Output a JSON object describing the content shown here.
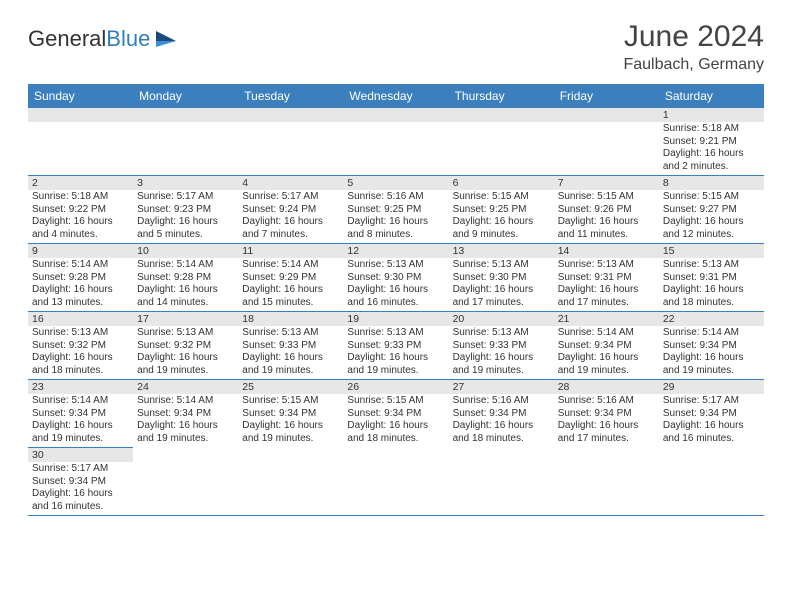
{
  "colors": {
    "header_bg": "#3b7fbf",
    "header_text": "#ffffff",
    "border": "#3b7fbf",
    "daynum_bg": "#e7e7e7",
    "body_text": "#333333",
    "logo_dark": "#333333",
    "logo_blue": "#2f7fbf",
    "page_bg": "#ffffff"
  },
  "typography": {
    "title_fontsize": 30,
    "location_fontsize": 16,
    "header_fontsize": 12,
    "cell_fontsize": 10,
    "font_family": "Arial"
  },
  "header": {
    "logo_general": "General",
    "logo_blue": "Blue",
    "month_title": "June 2024",
    "location": "Faulbach, Germany"
  },
  "calendar": {
    "type": "table",
    "columns": [
      "Sunday",
      "Monday",
      "Tuesday",
      "Wednesday",
      "Thursday",
      "Friday",
      "Saturday"
    ],
    "rows": [
      [
        null,
        null,
        null,
        null,
        null,
        null,
        {
          "day": "1",
          "sunrise": "Sunrise: 5:18 AM",
          "sunset": "Sunset: 9:21 PM",
          "daylight": "Daylight: 16 hours and 2 minutes."
        }
      ],
      [
        {
          "day": "2",
          "sunrise": "Sunrise: 5:18 AM",
          "sunset": "Sunset: 9:22 PM",
          "daylight": "Daylight: 16 hours and 4 minutes."
        },
        {
          "day": "3",
          "sunrise": "Sunrise: 5:17 AM",
          "sunset": "Sunset: 9:23 PM",
          "daylight": "Daylight: 16 hours and 5 minutes."
        },
        {
          "day": "4",
          "sunrise": "Sunrise: 5:17 AM",
          "sunset": "Sunset: 9:24 PM",
          "daylight": "Daylight: 16 hours and 7 minutes."
        },
        {
          "day": "5",
          "sunrise": "Sunrise: 5:16 AM",
          "sunset": "Sunset: 9:25 PM",
          "daylight": "Daylight: 16 hours and 8 minutes."
        },
        {
          "day": "6",
          "sunrise": "Sunrise: 5:15 AM",
          "sunset": "Sunset: 9:25 PM",
          "daylight": "Daylight: 16 hours and 9 minutes."
        },
        {
          "day": "7",
          "sunrise": "Sunrise: 5:15 AM",
          "sunset": "Sunset: 9:26 PM",
          "daylight": "Daylight: 16 hours and 11 minutes."
        },
        {
          "day": "8",
          "sunrise": "Sunrise: 5:15 AM",
          "sunset": "Sunset: 9:27 PM",
          "daylight": "Daylight: 16 hours and 12 minutes."
        }
      ],
      [
        {
          "day": "9",
          "sunrise": "Sunrise: 5:14 AM",
          "sunset": "Sunset: 9:28 PM",
          "daylight": "Daylight: 16 hours and 13 minutes."
        },
        {
          "day": "10",
          "sunrise": "Sunrise: 5:14 AM",
          "sunset": "Sunset: 9:28 PM",
          "daylight": "Daylight: 16 hours and 14 minutes."
        },
        {
          "day": "11",
          "sunrise": "Sunrise: 5:14 AM",
          "sunset": "Sunset: 9:29 PM",
          "daylight": "Daylight: 16 hours and 15 minutes."
        },
        {
          "day": "12",
          "sunrise": "Sunrise: 5:13 AM",
          "sunset": "Sunset: 9:30 PM",
          "daylight": "Daylight: 16 hours and 16 minutes."
        },
        {
          "day": "13",
          "sunrise": "Sunrise: 5:13 AM",
          "sunset": "Sunset: 9:30 PM",
          "daylight": "Daylight: 16 hours and 17 minutes."
        },
        {
          "day": "14",
          "sunrise": "Sunrise: 5:13 AM",
          "sunset": "Sunset: 9:31 PM",
          "daylight": "Daylight: 16 hours and 17 minutes."
        },
        {
          "day": "15",
          "sunrise": "Sunrise: 5:13 AM",
          "sunset": "Sunset: 9:31 PM",
          "daylight": "Daylight: 16 hours and 18 minutes."
        }
      ],
      [
        {
          "day": "16",
          "sunrise": "Sunrise: 5:13 AM",
          "sunset": "Sunset: 9:32 PM",
          "daylight": "Daylight: 16 hours and 18 minutes."
        },
        {
          "day": "17",
          "sunrise": "Sunrise: 5:13 AM",
          "sunset": "Sunset: 9:32 PM",
          "daylight": "Daylight: 16 hours and 19 minutes."
        },
        {
          "day": "18",
          "sunrise": "Sunrise: 5:13 AM",
          "sunset": "Sunset: 9:33 PM",
          "daylight": "Daylight: 16 hours and 19 minutes."
        },
        {
          "day": "19",
          "sunrise": "Sunrise: 5:13 AM",
          "sunset": "Sunset: 9:33 PM",
          "daylight": "Daylight: 16 hours and 19 minutes."
        },
        {
          "day": "20",
          "sunrise": "Sunrise: 5:13 AM",
          "sunset": "Sunset: 9:33 PM",
          "daylight": "Daylight: 16 hours and 19 minutes."
        },
        {
          "day": "21",
          "sunrise": "Sunrise: 5:14 AM",
          "sunset": "Sunset: 9:34 PM",
          "daylight": "Daylight: 16 hours and 19 minutes."
        },
        {
          "day": "22",
          "sunrise": "Sunrise: 5:14 AM",
          "sunset": "Sunset: 9:34 PM",
          "daylight": "Daylight: 16 hours and 19 minutes."
        }
      ],
      [
        {
          "day": "23",
          "sunrise": "Sunrise: 5:14 AM",
          "sunset": "Sunset: 9:34 PM",
          "daylight": "Daylight: 16 hours and 19 minutes."
        },
        {
          "day": "24",
          "sunrise": "Sunrise: 5:14 AM",
          "sunset": "Sunset: 9:34 PM",
          "daylight": "Daylight: 16 hours and 19 minutes."
        },
        {
          "day": "25",
          "sunrise": "Sunrise: 5:15 AM",
          "sunset": "Sunset: 9:34 PM",
          "daylight": "Daylight: 16 hours and 19 minutes."
        },
        {
          "day": "26",
          "sunrise": "Sunrise: 5:15 AM",
          "sunset": "Sunset: 9:34 PM",
          "daylight": "Daylight: 16 hours and 18 minutes."
        },
        {
          "day": "27",
          "sunrise": "Sunrise: 5:16 AM",
          "sunset": "Sunset: 9:34 PM",
          "daylight": "Daylight: 16 hours and 18 minutes."
        },
        {
          "day": "28",
          "sunrise": "Sunrise: 5:16 AM",
          "sunset": "Sunset: 9:34 PM",
          "daylight": "Daylight: 16 hours and 17 minutes."
        },
        {
          "day": "29",
          "sunrise": "Sunrise: 5:17 AM",
          "sunset": "Sunset: 9:34 PM",
          "daylight": "Daylight: 16 hours and 16 minutes."
        }
      ],
      [
        {
          "day": "30",
          "sunrise": "Sunrise: 5:17 AM",
          "sunset": "Sunset: 9:34 PM",
          "daylight": "Daylight: 16 hours and 16 minutes."
        },
        null,
        null,
        null,
        null,
        null,
        null
      ]
    ]
  }
}
